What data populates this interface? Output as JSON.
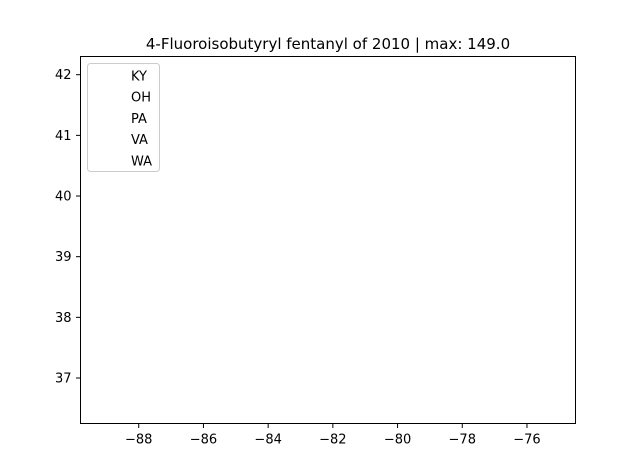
{
  "chart_data": {
    "type": "scatter",
    "title": "4-Fluoroisobutyryl fentanyl of 2010 | max: 149.0",
    "xlabel": "",
    "ylabel": "",
    "xlim": [
      -89.8,
      -74.5
    ],
    "ylim": [
      36.25,
      42.3
    ],
    "xticks": [
      -88,
      -86,
      -84,
      -82,
      -80,
      -78,
      -76
    ],
    "xtick_labels": [
      "−88",
      "−86",
      "−84",
      "−82",
      "−80",
      "−78",
      "−76"
    ],
    "yticks": [
      37,
      38,
      39,
      40,
      41,
      42
    ],
    "ytick_labels": [
      "37",
      "38",
      "39",
      "40",
      "41",
      "42"
    ],
    "grid": false,
    "legend_position": "top-left",
    "series": [
      {
        "name": "KY",
        "color": "#ffffff",
        "values": []
      },
      {
        "name": "OH",
        "color": "#ffffff",
        "values": []
      },
      {
        "name": "PA",
        "color": "#ffffff",
        "values": []
      },
      {
        "name": "VA",
        "color": "#ffffff",
        "values": []
      },
      {
        "name": "WA",
        "color": "#ffffff",
        "values": []
      }
    ]
  }
}
